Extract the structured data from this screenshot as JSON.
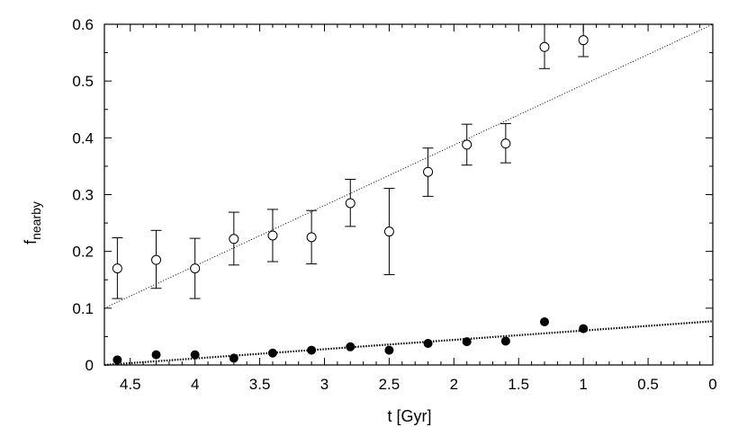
{
  "chart_data": {
    "type": "scatter",
    "xlabel": "t [Gyr]",
    "ylabel": {
      "main": "f",
      "subscript": "nearby"
    },
    "xlim": [
      4.7,
      0
    ],
    "ylim": [
      0,
      0.6
    ],
    "x_reversed": true,
    "xticks": [
      4.5,
      4,
      3.5,
      3,
      2.5,
      2,
      1.5,
      1,
      0.5,
      0
    ],
    "xtick_labels": [
      "4.5",
      "4",
      "3.5",
      "3",
      "2.5",
      "2",
      "1.5",
      "1",
      "0.5",
      "0"
    ],
    "yticks": [
      0,
      0.1,
      0.2,
      0.3,
      0.4,
      0.5,
      0.6
    ],
    "ytick_labels": [
      "0",
      "0.1",
      "0.2",
      "0.3",
      "0.4",
      "0.5",
      "0.6"
    ],
    "grid": false,
    "series": [
      {
        "marker": "open-circle",
        "color": "#000000",
        "x": [
          4.6,
          4.3,
          4.0,
          3.7,
          3.4,
          3.1,
          2.8,
          2.5,
          2.2,
          1.9,
          1.6,
          1.3,
          1.0
        ],
        "y": [
          0.17,
          0.185,
          0.17,
          0.222,
          0.228,
          0.225,
          0.285,
          0.235,
          0.34,
          0.388,
          0.39,
          0.56,
          0.572
        ],
        "err_low": [
          0.117,
          0.135,
          0.117,
          0.176,
          0.182,
          0.178,
          0.244,
          0.159,
          0.297,
          0.352,
          0.356,
          0.522,
          0.543
        ],
        "err_high": [
          0.224,
          0.237,
          0.223,
          0.269,
          0.274,
          0.272,
          0.327,
          0.311,
          0.382,
          0.424,
          0.425,
          0.6,
          0.6
        ]
      },
      {
        "marker": "filled-circle",
        "color": "#000000",
        "x": [
          4.6,
          4.3,
          4.0,
          3.7,
          3.4,
          3.1,
          2.8,
          2.5,
          2.2,
          1.9,
          1.6,
          1.3,
          1.0
        ],
        "y": [
          0.009,
          0.018,
          0.018,
          0.012,
          0.021,
          0.026,
          0.032,
          0.026,
          0.038,
          0.041,
          0.042,
          0.076,
          0.064
        ]
      }
    ],
    "fit_lines": [
      {
        "style": "thin-dotted",
        "x": [
          4.7,
          0
        ],
        "y": [
          0.1,
          0.6
        ]
      },
      {
        "style": "thick-dotted",
        "x": [
          4.7,
          0
        ],
        "y": [
          0.0,
          0.077
        ]
      }
    ]
  }
}
